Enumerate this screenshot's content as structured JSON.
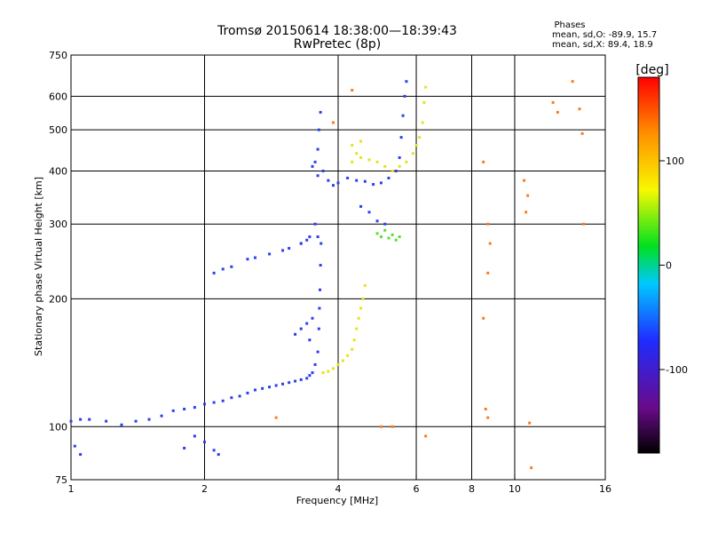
{
  "chart_data": {
    "type": "scatter",
    "title": "Tromsø 20150614 18:38:00—18:39:43",
    "subtitle": "RwPretec (8p)",
    "xlabel": "Frequency [MHz]",
    "ylabel": "Stationary phase Virtual Height [km]",
    "x_scale": "log",
    "y_scale": "log",
    "xlim": [
      1,
      16
    ],
    "ylim": [
      75,
      750
    ],
    "x_ticks": [
      1,
      2,
      4,
      6,
      8,
      10,
      16
    ],
    "y_ticks": [
      75,
      100,
      200,
      300,
      400,
      500,
      600,
      750
    ],
    "grid": true,
    "phase_stats": {
      "title": "Phases",
      "line1": "mean, sd,O: -89.9, 15.7",
      "line2": "mean, sd,X:  89.4, 18.9"
    },
    "colorbar": {
      "label": "[deg]",
      "range": [
        -180,
        180
      ],
      "ticks": [
        {
          "value": 100,
          "label": "100"
        },
        {
          "value": 0,
          "label": "0"
        },
        {
          "value": -100,
          "label": "-100"
        }
      ],
      "stops": [
        "#000000",
        "#6a0a8a",
        "#1f2cff",
        "#00c8ff",
        "#00e020",
        "#f8f800",
        "#ff9000",
        "#ff0000"
      ]
    },
    "series": [
      {
        "points": [
          [
            1.0,
            103
          ],
          [
            1.05,
            104
          ],
          [
            1.1,
            104
          ],
          [
            1.2,
            103
          ],
          [
            1.3,
            101
          ],
          [
            1.4,
            103
          ],
          [
            1.5,
            104
          ],
          [
            1.6,
            106
          ],
          [
            1.7,
            109
          ],
          [
            1.8,
            110
          ],
          [
            1.9,
            111
          ],
          [
            2.0,
            113
          ],
          [
            2.1,
            114
          ],
          [
            2.2,
            115
          ],
          [
            2.3,
            117
          ],
          [
            2.4,
            118
          ],
          [
            2.5,
            120
          ],
          [
            2.6,
            122
          ],
          [
            2.7,
            123
          ],
          [
            2.8,
            124
          ],
          [
            2.9,
            125
          ],
          [
            3.0,
            126
          ],
          [
            3.1,
            127
          ],
          [
            3.2,
            128
          ],
          [
            3.3,
            129
          ],
          [
            3.4,
            130
          ],
          [
            3.45,
            132
          ],
          [
            3.5,
            134
          ],
          [
            3.55,
            140
          ],
          [
            3.6,
            150
          ],
          [
            3.62,
            170
          ],
          [
            3.63,
            190
          ],
          [
            3.64,
            210
          ],
          [
            3.65,
            240
          ],
          [
            3.66,
            270
          ],
          [
            3.6,
            280
          ],
          [
            3.55,
            300
          ],
          [
            2.1,
            230
          ],
          [
            2.2,
            235
          ],
          [
            2.3,
            238
          ],
          [
            2.5,
            248
          ],
          [
            2.6,
            250
          ],
          [
            2.8,
            255
          ],
          [
            3.0,
            260
          ],
          [
            3.1,
            263
          ],
          [
            3.3,
            270
          ],
          [
            3.45,
            280
          ],
          [
            3.6,
            390
          ],
          [
            3.7,
            400
          ],
          [
            3.8,
            380
          ],
          [
            3.9,
            370
          ],
          [
            4.0,
            375
          ],
          [
            4.2,
            385
          ],
          [
            4.4,
            380
          ],
          [
            4.6,
            378
          ],
          [
            4.8,
            372
          ],
          [
            5.0,
            375
          ],
          [
            5.2,
            385
          ],
          [
            5.4,
            400
          ],
          [
            5.5,
            430
          ],
          [
            5.55,
            480
          ],
          [
            5.6,
            540
          ],
          [
            5.65,
            600
          ],
          [
            5.7,
            650
          ],
          [
            3.6,
            450
          ],
          [
            3.62,
            500
          ],
          [
            3.65,
            550
          ],
          [
            3.55,
            420
          ],
          [
            3.5,
            410
          ],
          [
            4.5,
            330
          ],
          [
            4.7,
            320
          ],
          [
            4.9,
            305
          ],
          [
            5.1,
            300
          ],
          [
            3.3,
            270
          ],
          [
            3.4,
            275
          ],
          [
            3.3,
            170
          ],
          [
            3.4,
            175
          ],
          [
            3.5,
            180
          ],
          [
            3.2,
            165
          ],
          [
            3.45,
            160
          ],
          [
            1.9,
            95
          ],
          [
            2.0,
            92
          ],
          [
            2.1,
            88
          ],
          [
            2.15,
            86
          ],
          [
            1.8,
            89
          ],
          [
            1.05,
            86
          ],
          [
            1.02,
            90
          ]
        ]
      },
      {
        "points": [
          [
            3.7,
            134
          ],
          [
            3.8,
            135
          ],
          [
            3.9,
            137
          ],
          [
            4.0,
            140
          ],
          [
            4.1,
            143
          ],
          [
            4.2,
            147
          ],
          [
            4.3,
            152
          ],
          [
            4.35,
            160
          ],
          [
            4.4,
            170
          ],
          [
            4.45,
            180
          ],
          [
            4.5,
            190
          ],
          [
            4.55,
            200
          ],
          [
            4.6,
            215
          ],
          [
            4.3,
            420
          ],
          [
            4.5,
            430
          ],
          [
            4.7,
            425
          ],
          [
            4.9,
            420
          ],
          [
            5.1,
            410
          ],
          [
            5.3,
            400
          ],
          [
            5.5,
            410
          ],
          [
            5.7,
            420
          ],
          [
            5.9,
            440
          ],
          [
            6.0,
            460
          ],
          [
            6.1,
            480
          ],
          [
            6.2,
            520
          ],
          [
            4.3,
            460
          ],
          [
            4.5,
            470
          ],
          [
            4.4,
            440
          ],
          [
            6.25,
            580
          ],
          [
            6.3,
            630
          ]
        ]
      },
      {
        "points": [
          [
            4.9,
            285
          ],
          [
            5.0,
            280
          ],
          [
            5.2,
            278
          ],
          [
            5.4,
            275
          ],
          [
            5.5,
            280
          ],
          [
            5.1,
            290
          ],
          [
            5.3,
            283
          ]
        ]
      },
      {
        "points": [
          [
            8.5,
            420
          ],
          [
            8.7,
            300
          ],
          [
            8.8,
            270
          ],
          [
            8.7,
            230
          ],
          [
            8.5,
            180
          ],
          [
            8.6,
            110
          ],
          [
            8.7,
            105
          ],
          [
            10.5,
            380
          ],
          [
            10.7,
            350
          ],
          [
            10.6,
            320
          ],
          [
            12.2,
            580
          ],
          [
            12.5,
            550
          ],
          [
            13.5,
            650
          ],
          [
            14.0,
            560
          ],
          [
            14.2,
            490
          ],
          [
            14.3,
            300
          ],
          [
            10.8,
            102
          ],
          [
            10.9,
            80
          ],
          [
            4.3,
            620
          ],
          [
            3.9,
            520
          ],
          [
            5.0,
            100
          ],
          [
            5.3,
            100
          ],
          [
            6.3,
            95
          ],
          [
            2.9,
            105
          ]
        ]
      }
    ]
  }
}
